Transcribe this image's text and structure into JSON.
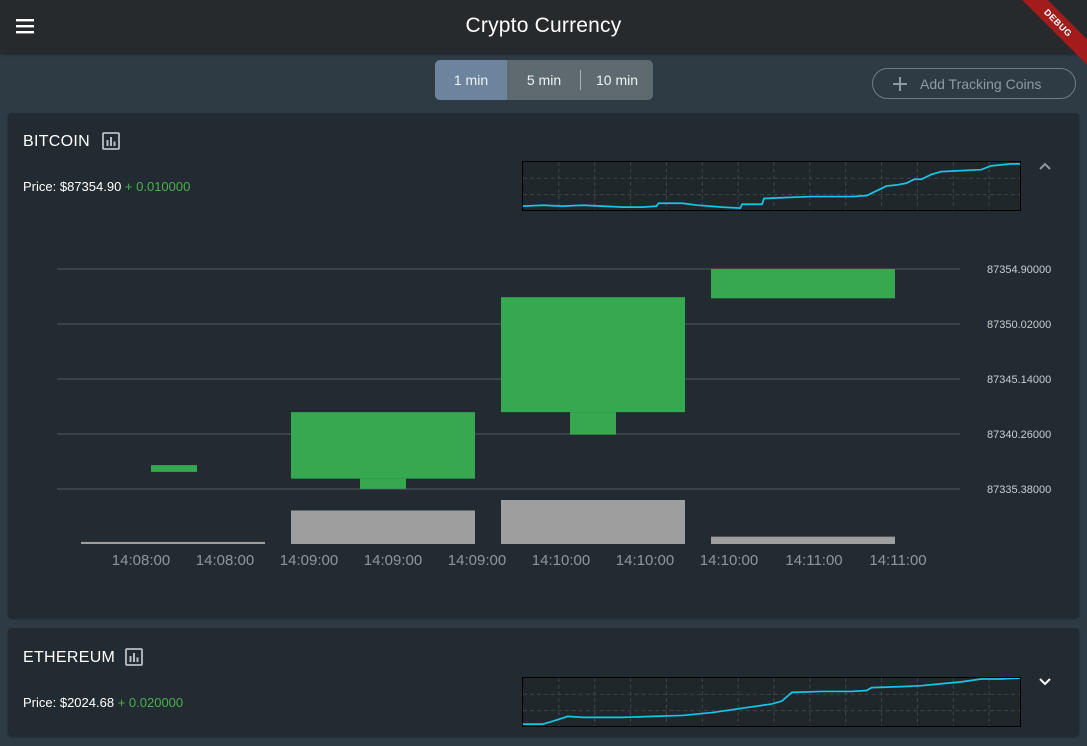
{
  "app": {
    "title": "Crypto Currency",
    "debug_label": "DEBUG"
  },
  "intervals": {
    "options": [
      "1 min",
      "5 min",
      "10 min"
    ],
    "selected": "1 min"
  },
  "add_button": {
    "label": "Add Tracking Coins"
  },
  "colors": {
    "up": "#36a84f",
    "volume": "#9e9e9e",
    "spark": "#17c5e6",
    "change": "#4caf50",
    "active_tab": "#6d849e"
  },
  "coins": [
    {
      "name": "BITCOIN",
      "price_label": "Price: $87354.90",
      "change": "+ 0.010000",
      "expanded": true,
      "icon": "chevron-up-icon"
    },
    {
      "name": "ETHEREUM",
      "price_label": "Price: $2024.68",
      "change": "+ 0.020000",
      "expanded": false,
      "icon": "chevron-down-icon"
    }
  ],
  "chart_data": {
    "type": "candlestick",
    "title": "",
    "y_ticks": [
      "87354.90000",
      "87350.02000",
      "87345.14000",
      "87340.26000",
      "87335.38000"
    ],
    "ylim": [
      87335.38,
      87354.9
    ],
    "x_tick_labels": [
      "14:08:00",
      "14:08:00",
      "14:09:00",
      "14:09:00",
      "14:09:00",
      "14:10:00",
      "14:10:00",
      "14:10:00",
      "14:11:00",
      "14:11:00"
    ],
    "grid": true,
    "candles": [
      {
        "period": "14:08",
        "open": 87336.9,
        "close": 87337.5,
        "high": 87337.5,
        "low": 87336.9,
        "volume": 0.02
      },
      {
        "period": "14:09",
        "open": 87336.3,
        "close": 87342.2,
        "high": 87342.2,
        "low": 87335.4,
        "volume": 0.32
      },
      {
        "period": "14:10",
        "open": 87342.2,
        "close": 87352.4,
        "high": 87352.4,
        "low": 87340.2,
        "volume": 0.42
      },
      {
        "period": "14:11",
        "open": 87352.3,
        "close": 87354.9,
        "high": 87354.9,
        "low": 87352.3,
        "volume": 0.07
      }
    ]
  }
}
